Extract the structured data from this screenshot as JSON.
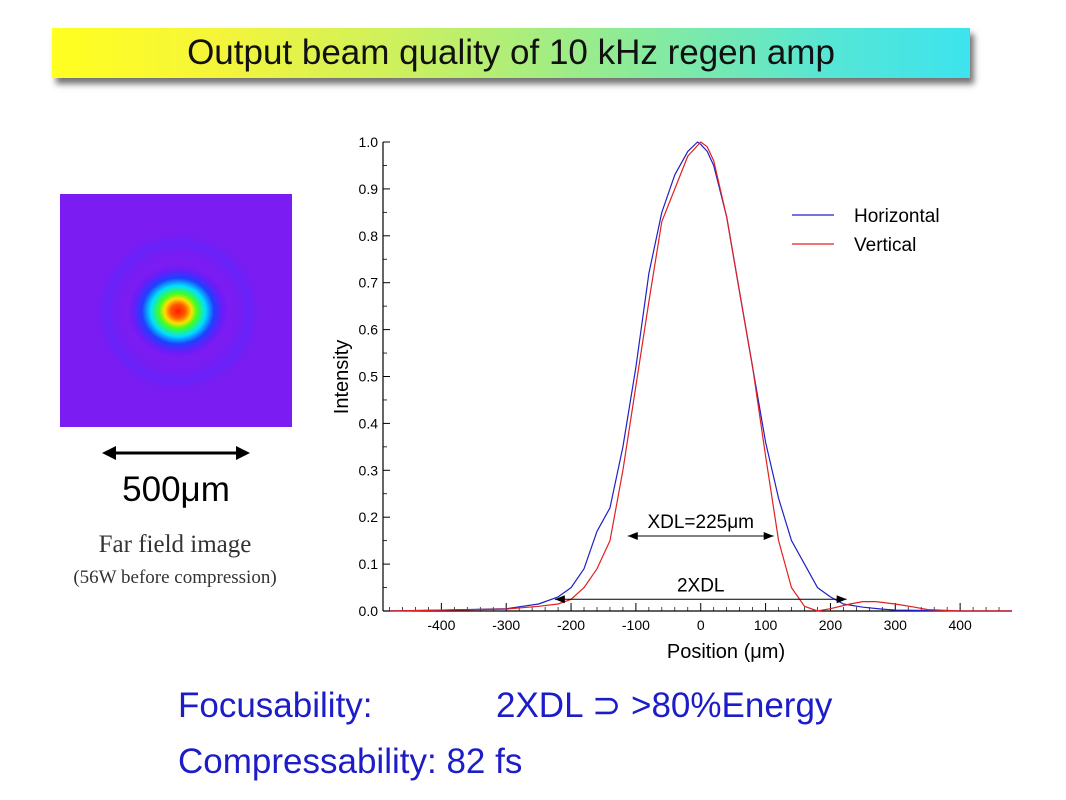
{
  "title": "Output beam quality of 10 kHz regen amp",
  "image_panel": {
    "scale_label": "500μm",
    "caption": "Far field image",
    "subcaption": "(56W before compression)"
  },
  "focusability": {
    "label": "Focusability:",
    "value": "2XDL ⊃ >80%Energy"
  },
  "compressability": {
    "label": "Compressability:",
    "value": "82 fs"
  },
  "chart_data": {
    "type": "line",
    "xlabel": "Position (μm)",
    "ylabel": "Intensity",
    "xlim": [
      -490,
      480
    ],
    "ylim": [
      0,
      1.0
    ],
    "xticks": [
      -400,
      -300,
      -200,
      -100,
      0,
      100,
      200,
      300,
      400
    ],
    "yticks": [
      0.0,
      0.1,
      0.2,
      0.3,
      0.4,
      0.5,
      0.6,
      0.7,
      0.8,
      0.9,
      1.0
    ],
    "grid": false,
    "legend_position": "top-right",
    "series": [
      {
        "name": "Horizontal",
        "color": "#2020c8",
        "x": [
          -480,
          -400,
          -300,
          -250,
          -220,
          -200,
          -180,
          -160,
          -140,
          -120,
          -100,
          -80,
          -60,
          -40,
          -20,
          -5,
          0,
          10,
          20,
          40,
          60,
          80,
          100,
          120,
          140,
          160,
          180,
          200,
          220,
          250,
          280,
          300,
          350,
          400,
          480
        ],
        "y": [
          0.0,
          0.002,
          0.005,
          0.015,
          0.03,
          0.05,
          0.09,
          0.17,
          0.22,
          0.35,
          0.52,
          0.72,
          0.85,
          0.93,
          0.98,
          1.0,
          0.995,
          0.98,
          0.95,
          0.84,
          0.68,
          0.52,
          0.36,
          0.24,
          0.15,
          0.1,
          0.05,
          0.03,
          0.015,
          0.008,
          0.004,
          0.002,
          0.001,
          0.0,
          0.0
        ]
      },
      {
        "name": "Vertical",
        "color": "#e02020",
        "x": [
          -480,
          -400,
          -300,
          -250,
          -220,
          -200,
          -180,
          -160,
          -140,
          -120,
          -100,
          -80,
          -60,
          -40,
          -20,
          0,
          10,
          20,
          40,
          60,
          80,
          100,
          120,
          140,
          160,
          180,
          200,
          230,
          250,
          270,
          300,
          330,
          350,
          400,
          480
        ],
        "y": [
          0.0,
          0.002,
          0.004,
          0.01,
          0.015,
          0.025,
          0.05,
          0.09,
          0.15,
          0.3,
          0.48,
          0.66,
          0.83,
          0.9,
          0.97,
          1.0,
          0.99,
          0.96,
          0.84,
          0.68,
          0.52,
          0.33,
          0.15,
          0.05,
          0.01,
          0.0,
          0.005,
          0.015,
          0.02,
          0.02,
          0.015,
          0.008,
          0.003,
          0.0,
          0.0
        ]
      }
    ],
    "annotations": [
      {
        "text": "XDL=225μm",
        "x_start": -112.5,
        "x_end": 112.5,
        "y": 0.16
      },
      {
        "text": "2XDL",
        "x_start": -225,
        "x_end": 225,
        "y": 0.025
      }
    ]
  }
}
